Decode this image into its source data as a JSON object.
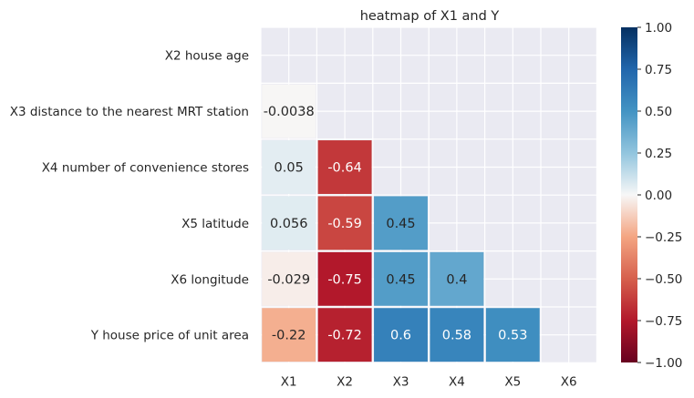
{
  "chart_data": {
    "type": "heatmap",
    "title": "heatmap of X1 and Y",
    "xlabel": "",
    "ylabel": "",
    "x_categories": [
      "X1",
      "X2",
      "X3",
      "X4",
      "X5",
      "X6"
    ],
    "y_categories": [
      "X2 house age",
      "X3 distance to the nearest MRT station",
      "X4 number of convenience stores",
      "X5 latitude",
      "X6 longitude",
      "Y house price of unit area"
    ],
    "values": [
      [
        null,
        null,
        null,
        null,
        null,
        null
      ],
      [
        -0.0038,
        null,
        null,
        null,
        null,
        null
      ],
      [
        0.05,
        -0.64,
        null,
        null,
        null,
        null
      ],
      [
        0.056,
        -0.59,
        0.45,
        null,
        null,
        null
      ],
      [
        -0.029,
        -0.75,
        0.45,
        0.4,
        null,
        null
      ],
      [
        -0.22,
        -0.72,
        0.6,
        0.58,
        0.53,
        null
      ]
    ],
    "annotations": [
      [
        null,
        null,
        null,
        null,
        null,
        null
      ],
      [
        "-0.0038",
        null,
        null,
        null,
        null,
        null
      ],
      [
        "0.05",
        "-0.64",
        null,
        null,
        null,
        null
      ],
      [
        "0.056",
        "-0.59",
        "0.45",
        null,
        null,
        null
      ],
      [
        "-0.029",
        "-0.75",
        "0.45",
        "0.4",
        null,
        null
      ],
      [
        "-0.22",
        "-0.72",
        "0.6",
        "0.58",
        "0.53",
        null
      ]
    ],
    "colormap": "RdBu",
    "vmin": -1,
    "vmax": 1,
    "colorbar_ticks": [
      "1.00",
      "0.75",
      "0.50",
      "0.25",
      "0.00",
      "−0.25",
      "−0.50",
      "−0.75",
      "−1.00"
    ],
    "masked_cell_color": "#eaeaf2",
    "grid": true
  }
}
